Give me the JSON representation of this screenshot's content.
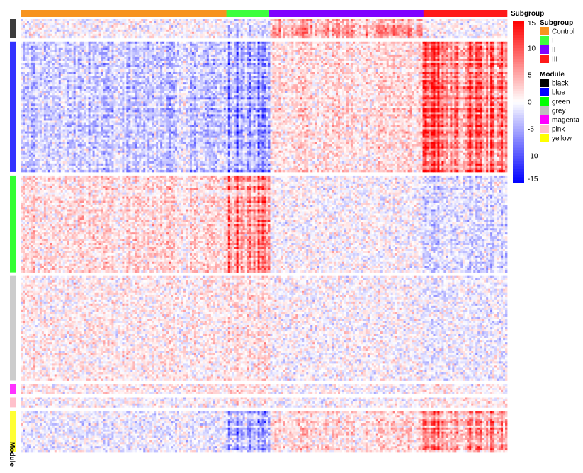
{
  "chart_data": {
    "type": "heatmap",
    "title": "",
    "xlabel": "",
    "ylabel": "",
    "column_annotation": {
      "title": "Subgroup",
      "groups": [
        {
          "label": "Control",
          "color": "#F7931E",
          "fraction": 0.423
        },
        {
          "label": "I",
          "color": "#3DFF3D",
          "fraction": 0.088
        },
        {
          "label": "II",
          "color": "#8000FF",
          "fraction": 0.317
        },
        {
          "label": "III",
          "color": "#FF1A1A",
          "fraction": 0.172
        }
      ]
    },
    "row_annotation": {
      "title": "Module",
      "modules_shown": [
        {
          "color": "#3C3C3C",
          "fraction": 0.048
        },
        {
          "color": "#3333FF",
          "fraction": 0.33
        },
        {
          "color": "#33FF33",
          "fraction": 0.245
        },
        {
          "color": "#CCCCCC",
          "fraction": 0.265
        },
        {
          "color": "#FF33FF",
          "fraction": 0.025
        },
        {
          "color": "#FFC0CB",
          "fraction": 0.025
        },
        {
          "color": "#FFFF33",
          "fraction": 0.105
        }
      ],
      "legend": [
        {
          "label": "black",
          "color": "#000000"
        },
        {
          "label": "blue",
          "color": "#0000FF"
        },
        {
          "label": "green",
          "color": "#00FF00"
        },
        {
          "label": "grey",
          "color": "#BEBEBE"
        },
        {
          "label": "magenta",
          "color": "#FF00FF"
        },
        {
          "label": "pink",
          "color": "#FFC0CB"
        },
        {
          "label": "yellow",
          "color": "#FFFF00"
        }
      ]
    },
    "color_scale": {
      "min": -15,
      "max": 15,
      "low_color": "#0000FF",
      "mid_color": "#FFFFFF",
      "high_color": "#FF0000",
      "ticks": [
        15,
        10,
        5,
        0,
        -5,
        -10,
        -15
      ]
    },
    "module_group_means": [
      [
        0,
        -2,
        4,
        0
      ],
      [
        -3,
        -6,
        2,
        9
      ],
      [
        2,
        7,
        0,
        -2
      ],
      [
        1,
        2,
        0,
        -1
      ],
      [
        1,
        2,
        0,
        1
      ],
      [
        0,
        1,
        0,
        1
      ],
      [
        -1,
        -5,
        2,
        6
      ]
    ]
  }
}
